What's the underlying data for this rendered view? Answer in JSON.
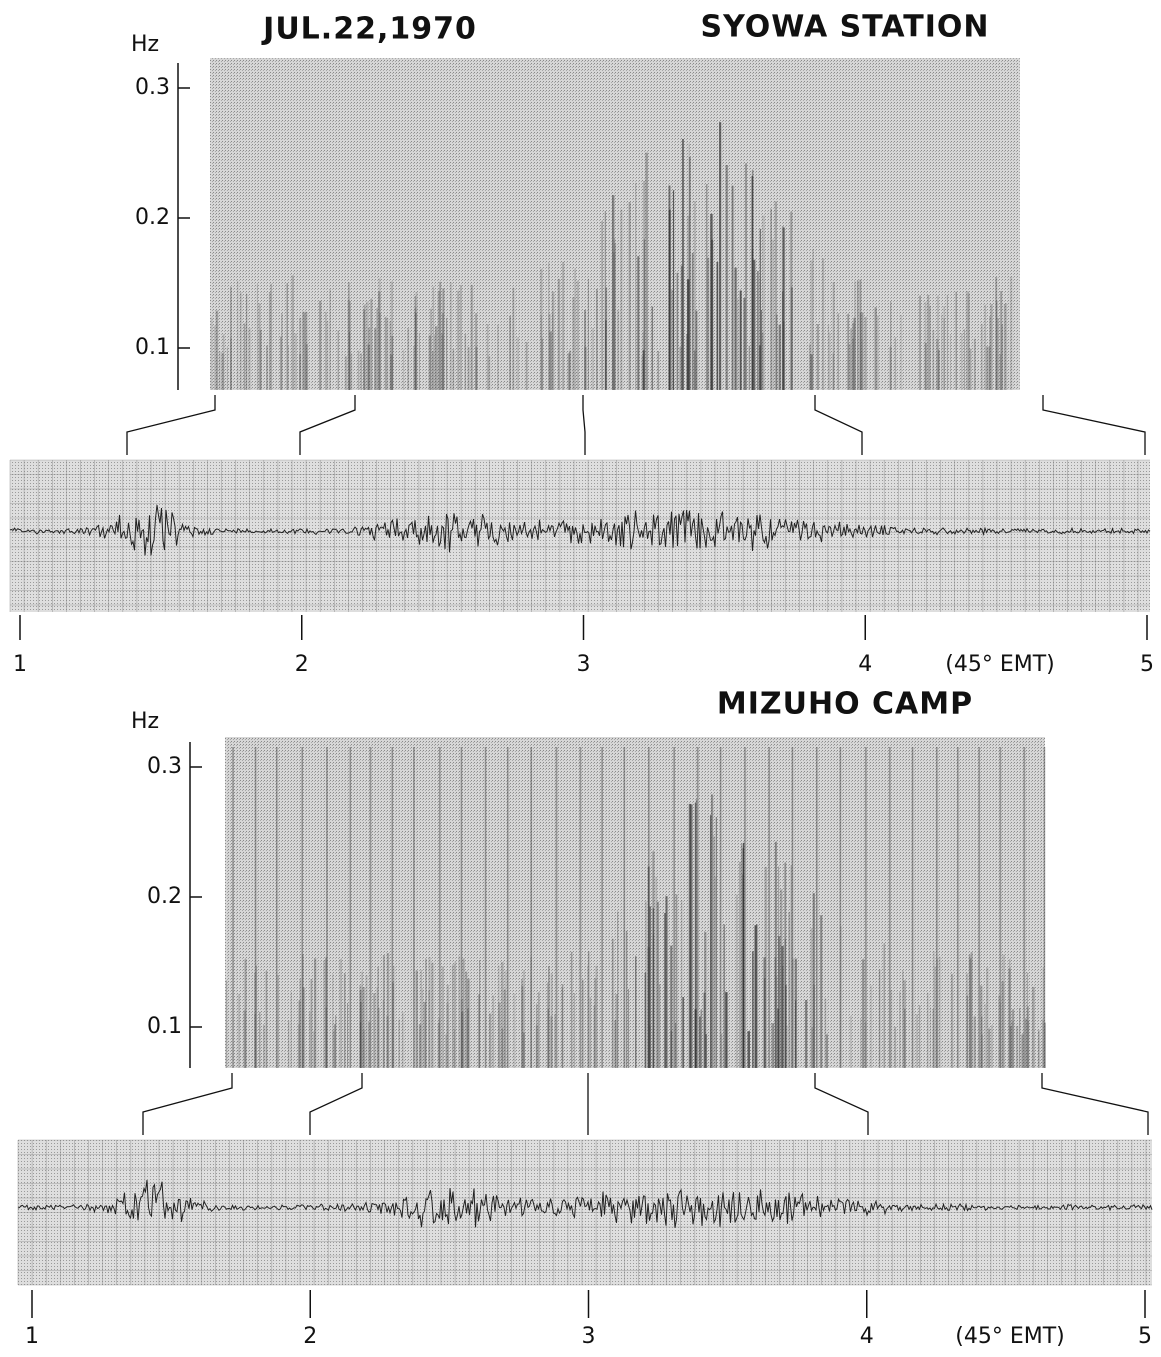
{
  "header": {
    "date": "JUL.22,1970"
  },
  "panels": [
    {
      "station": "SYOWA STATION",
      "y_unit": "Hz",
      "yticks": [
        0.1,
        0.2,
        0.3
      ],
      "time_ticks": [
        1,
        2,
        3,
        4,
        5
      ],
      "time_zone": "(45° EMT)"
    },
    {
      "station": "MIZUHO CAMP",
      "y_unit": "Hz",
      "yticks": [
        0.1,
        0.2,
        0.3
      ],
      "time_ticks": [
        1,
        2,
        3,
        4,
        5
      ],
      "time_zone": "(45° EMT)"
    }
  ]
}
